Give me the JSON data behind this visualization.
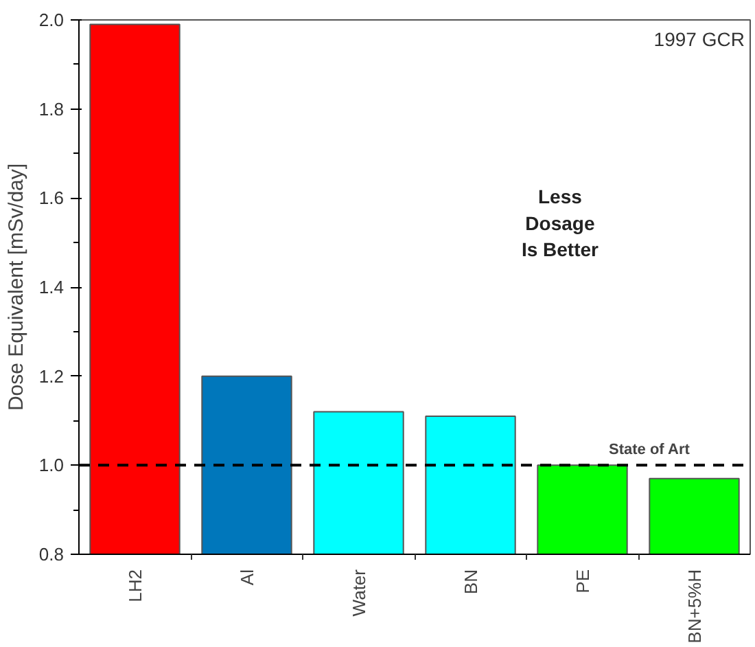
{
  "chart_data": {
    "type": "bar",
    "ylabel": "Dose Equivalent [mSv/day]",
    "categories": [
      "LH2",
      "Al",
      "Water",
      "BN",
      "PE",
      "BN+5%H"
    ],
    "values": [
      1.99,
      1.2,
      1.12,
      1.11,
      1.0,
      0.97
    ],
    "colors": [
      "#ff0000",
      "#0077bb",
      "#00ffff",
      "#00ffff",
      "#00ff00",
      "#00ff00"
    ],
    "ylim": [
      0.8,
      2.0
    ],
    "yticks": [
      0.8,
      {
        "value": 1,
        "label": "1.0"
      },
      1.2,
      1.4,
      1.6,
      1.8,
      {
        "value": 2,
        "label": "2.0"
      }
    ],
    "ref_lines": [
      {
        "axis": "y",
        "value": 1.0,
        "label": "State of Art",
        "color": "#000000",
        "line_style": "dashed"
      }
    ],
    "annotations": [
      "1997 GCR",
      "Less\nDosage\nIs Better"
    ],
    "grid": false
  }
}
